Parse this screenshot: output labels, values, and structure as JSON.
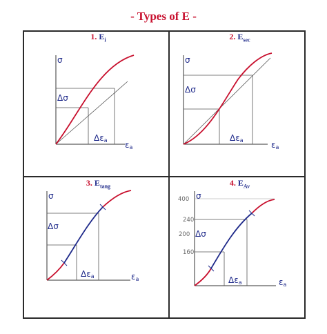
{
  "title": "- Types of E -",
  "panels": [
    {
      "num": "1.",
      "e": "E",
      "sub": "i"
    },
    {
      "num": "2.",
      "e": "E",
      "sub": "sec"
    },
    {
      "num": "3.",
      "e": "E",
      "sub": "tang"
    },
    {
      "num": "4.",
      "e": "E",
      "sub": "Av"
    }
  ],
  "labels": {
    "sigma": "σ",
    "delta_sigma": "Δσ",
    "delta_epsilon": "Δε",
    "eps_sub": "a",
    "epsilon": "ε"
  },
  "ticks": [
    "400",
    "240",
    "200",
    "160"
  ],
  "colors": {
    "curve": "#c8102e",
    "blue": "#1f2a8a",
    "guide": "#555555"
  }
}
